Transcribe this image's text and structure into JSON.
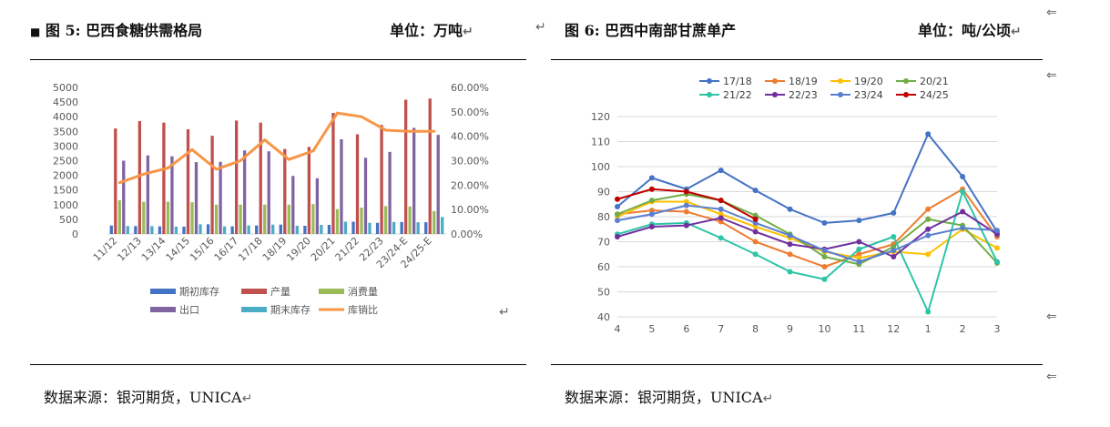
{
  "left": {
    "marker": "■",
    "title": "图 5:  巴西食糖供需格局",
    "unit": "单位：万吨",
    "source": "数据来源：银河期货，UNICA",
    "chart_data": {
      "type": "bar",
      "categories": [
        "11/12",
        "12/13",
        "13/14",
        "14/15",
        "15/16",
        "16/17",
        "17/18",
        "18/19",
        "19/20",
        "20/21",
        "21/22",
        "22/23",
        "23/24-E",
        "24/25-E"
      ],
      "ylim": [
        0,
        5000
      ],
      "y_ticks": [
        "0",
        "500",
        "1000",
        "1500",
        "2000",
        "2500",
        "3000",
        "3500",
        "4000",
        "4500",
        "5000"
      ],
      "y2lim": [
        0,
        60
      ],
      "y2_ticks": [
        "0.00%",
        "10.00%",
        "20.00%",
        "30.00%",
        "40.00%",
        "50.00%",
        "60.00%"
      ],
      "legend_position": "bottom",
      "series": [
        {
          "name": "期初库存",
          "type": "bar",
          "color": "#4472c4",
          "values": [
            290,
            270,
            260,
            250,
            330,
            260,
            290,
            320,
            280,
            310,
            420,
            380,
            410,
            400
          ]
        },
        {
          "name": "产量",
          "type": "bar",
          "color": "#c0504d",
          "values": [
            3600,
            3850,
            3800,
            3570,
            3350,
            3870,
            3800,
            2900,
            2970,
            4130,
            3400,
            3720,
            4580,
            4620
          ]
        },
        {
          "name": "消费量",
          "type": "bar",
          "color": "#9bbb59",
          "values": [
            1150,
            1100,
            1100,
            1080,
            1000,
            1000,
            1000,
            1000,
            1020,
            850,
            900,
            950,
            940,
            780
          ]
        },
        {
          "name": "出口",
          "type": "bar",
          "color": "#8064a2",
          "values": [
            2500,
            2680,
            2650,
            2450,
            2460,
            2850,
            2820,
            1980,
            1900,
            3230,
            2600,
            2800,
            3620,
            3380
          ]
        },
        {
          "name": "期末库存",
          "type": "bar",
          "color": "#4bacc6",
          "values": [
            270,
            270,
            250,
            330,
            260,
            290,
            320,
            280,
            310,
            420,
            380,
            410,
            400,
            580
          ]
        },
        {
          "name": "库销比",
          "type": "line",
          "axis": "right",
          "color": "#f79646",
          "values": [
            21.0,
            24.5,
            27.0,
            34.5,
            26.5,
            30.0,
            38.5,
            30.5,
            34.0,
            49.5,
            48.0,
            42.5,
            42.0,
            42.0
          ]
        }
      ]
    }
  },
  "right": {
    "title": "图 6:  巴西中南部甘蔗单产",
    "unit": "单位：吨/公顷",
    "source": "数据来源：银河期货，UNICA",
    "chart_data": {
      "type": "line",
      "x": [
        "4",
        "5",
        "6",
        "7",
        "8",
        "9",
        "10",
        "11",
        "12",
        "1",
        "2",
        "3"
      ],
      "ylim": [
        40,
        120
      ],
      "y_ticks": [
        "40",
        "50",
        "60",
        "70",
        "80",
        "90",
        "100",
        "110",
        "120"
      ],
      "legend_position": "top",
      "series": [
        {
          "name": "17/18",
          "color": "#4472c4",
          "values": [
            84,
            95.5,
            91,
            98.5,
            90.5,
            83,
            77.5,
            78.5,
            81.5,
            113,
            96,
            74
          ]
        },
        {
          "name": "18/19",
          "color": "#ed7d31",
          "values": [
            81,
            82.5,
            82,
            78,
            70,
            65,
            60,
            65,
            69,
            83,
            91,
            72
          ]
        },
        {
          "name": "19/20",
          "color": "#ffc000",
          "values": [
            80,
            86,
            86,
            81,
            76,
            71.5,
            66,
            63.5,
            66,
            65,
            75,
            67.5
          ]
        },
        {
          "name": "20/21",
          "color": "#70ad47",
          "values": [
            81,
            86.5,
            89,
            86.5,
            80.5,
            73,
            64,
            61,
            68,
            79,
            76.5,
            61.5
          ]
        },
        {
          "name": "21/22",
          "color": "#2ec4a6",
          "values": [
            73,
            77,
            77.5,
            71.5,
            65,
            58,
            55,
            67,
            72,
            42,
            90,
            62
          ]
        },
        {
          "name": "22/23",
          "color": "#7030a0",
          "values": [
            72,
            76,
            76.5,
            79.5,
            74,
            69,
            67,
            70,
            64,
            75,
            82,
            73
          ]
        },
        {
          "name": "23/24",
          "color": "#5b7fcf",
          "values": [
            78.5,
            81,
            84.5,
            83,
            77.5,
            72.5,
            66.5,
            62,
            66.5,
            72.5,
            75.5,
            74.5
          ]
        },
        {
          "name": "24/25",
          "color": "#c00000",
          "values": [
            87,
            91,
            90,
            86.5,
            79,
            null,
            null,
            null,
            null,
            null,
            null,
            null
          ]
        }
      ]
    }
  },
  "icons": {
    "return_mark": "↵",
    "return_arrow": "⇐"
  }
}
